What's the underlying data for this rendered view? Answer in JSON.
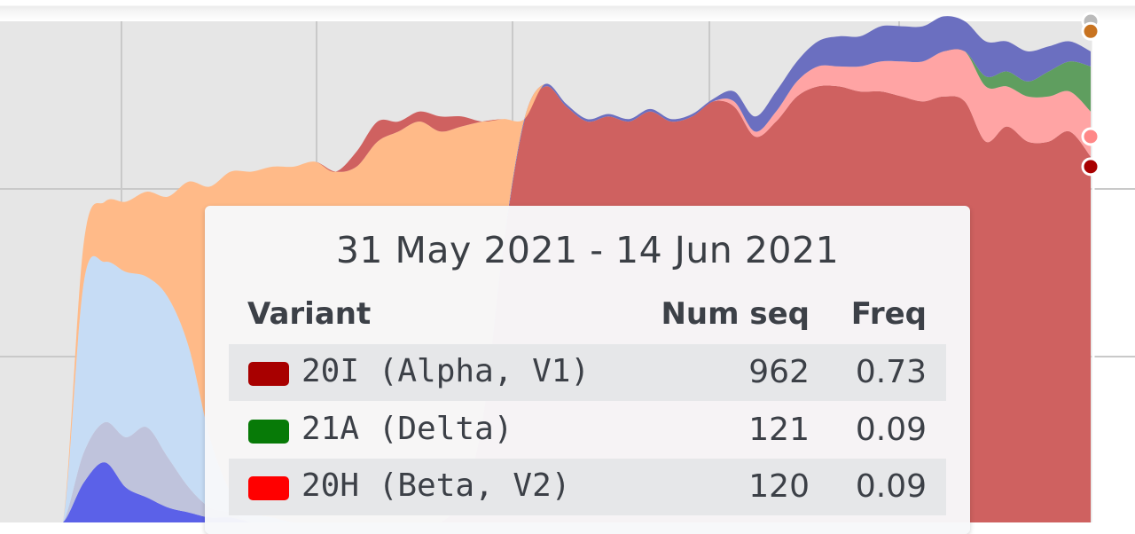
{
  "chart_data": {
    "type": "area",
    "stacked": true,
    "grid": true,
    "title": "",
    "xlabel": "",
    "ylabel": "",
    "ylim": [
      0,
      1
    ],
    "x": [
      0,
      1,
      2,
      3,
      4,
      5,
      6,
      7,
      8,
      9,
      10,
      11,
      12,
      13,
      14,
      15,
      16,
      17,
      18,
      19,
      20,
      21,
      22,
      23,
      24,
      25,
      26,
      27,
      28,
      29,
      30,
      31,
      32,
      33,
      34,
      35,
      36,
      37,
      38,
      39,
      40,
      41,
      42,
      43,
      44,
      45,
      46,
      47,
      48,
      49,
      50,
      51,
      52
    ],
    "series": [
      {
        "color": "#cf6160",
        "values": [
          0,
          0,
          0,
          0,
          0,
          0,
          0,
          0,
          0,
          0,
          0,
          0,
          0,
          0,
          0,
          0,
          0,
          0,
          0,
          0,
          0,
          0,
          0.05,
          0.2,
          0.55,
          0.8,
          0.87,
          0.83,
          0.8,
          0.81,
          0.8,
          0.82,
          0.8,
          0.81,
          0.84,
          0.83,
          0.77,
          0.8,
          0.85,
          0.87,
          0.87,
          0.86,
          0.86,
          0.85,
          0.84,
          0.85,
          0.84,
          0.76,
          0.79,
          0.76,
          0.76,
          0.78,
          0.73
        ]
      },
      {
        "color": "#5b61e8",
        "values": [
          0,
          0,
          0,
          0,
          0.08,
          0.12,
          0.07,
          0.05,
          0.03,
          0.02,
          0.01,
          0.01,
          0,
          0,
          0,
          0,
          0,
          0,
          0,
          0,
          0,
          0,
          0,
          0,
          0,
          0,
          0,
          0,
          0,
          0,
          0,
          0,
          0,
          0,
          0,
          0,
          0,
          0,
          0,
          0,
          0,
          0,
          0,
          0,
          0,
          0,
          0,
          0,
          0,
          0,
          0,
          0,
          0
        ]
      },
      {
        "color": "#bfc3dc",
        "values": [
          0,
          0,
          0,
          0,
          0.06,
          0.08,
          0.1,
          0.14,
          0.1,
          0.05,
          0.02,
          0.01,
          0,
          0,
          0,
          0,
          0,
          0,
          0,
          0,
          0,
          0,
          0,
          0,
          0,
          0,
          0,
          0,
          0,
          0,
          0,
          0,
          0,
          0,
          0,
          0,
          0,
          0,
          0,
          0,
          0,
          0,
          0,
          0,
          0,
          0,
          0,
          0,
          0,
          0,
          0,
          0,
          0
        ]
      },
      {
        "color": "#ffa4a4",
        "values": [
          0,
          0,
          0,
          0,
          0,
          0,
          0,
          0,
          0,
          0,
          0,
          0,
          0,
          0,
          0,
          0,
          0,
          0,
          0,
          0,
          0,
          0,
          0,
          0,
          0,
          0,
          0,
          0,
          0,
          0,
          0,
          0,
          0,
          0,
          0,
          0.01,
          0.01,
          0.02,
          0.03,
          0.04,
          0.04,
          0.05,
          0.06,
          0.07,
          0.08,
          0.09,
          0.1,
          0.11,
          0.08,
          0.09,
          0.09,
          0.08,
          0.09
        ]
      },
      {
        "color": "#5f9e5f",
        "values": [
          0,
          0,
          0,
          0,
          0,
          0,
          0,
          0,
          0,
          0,
          0,
          0,
          0,
          0,
          0,
          0,
          0,
          0,
          0,
          0,
          0,
          0,
          0,
          0,
          0,
          0,
          0,
          0,
          0,
          0,
          0,
          0,
          0,
          0,
          0,
          0,
          0,
          0,
          0,
          0,
          0,
          0,
          0,
          0,
          0,
          0,
          0,
          0.02,
          0.03,
          0.03,
          0.05,
          0.06,
          0.09
        ]
      },
      {
        "color": "#6b6fc0",
        "values": [
          0,
          0,
          0,
          0,
          0,
          0,
          0,
          0,
          0,
          0,
          0,
          0,
          0,
          0,
          0,
          0,
          0,
          0,
          0,
          0,
          0,
          0,
          0,
          0,
          0.005,
          0.005,
          0.005,
          0.005,
          0.005,
          0.005,
          0.005,
          0.005,
          0.005,
          0.005,
          0.005,
          0.02,
          0.03,
          0.04,
          0.04,
          0.05,
          0.06,
          0.06,
          0.07,
          0.07,
          0.07,
          0.07,
          0.06,
          0.07,
          0.06,
          0.06,
          0.05,
          0.04,
          0.03
        ]
      },
      {
        "color": "#c6dcf5",
        "values": [
          0,
          0,
          0,
          0,
          0.34,
          0.32,
          0.33,
          0.3,
          0.32,
          0.28,
          0.14,
          0.04,
          0.02,
          0.01,
          0,
          0,
          0,
          0,
          0,
          0,
          0,
          0,
          0,
          0,
          0,
          0,
          0,
          0,
          0,
          0,
          0,
          0,
          0,
          0,
          0,
          0,
          0,
          0,
          0,
          0,
          0,
          0,
          0,
          0,
          0,
          0,
          0,
          0,
          0,
          0,
          0,
          0,
          0
        ]
      },
      {
        "color": "#ffba88",
        "values": [
          0,
          0,
          0,
          0,
          0.08,
          0.12,
          0.14,
          0.17,
          0.2,
          0.33,
          0.5,
          0.64,
          0.68,
          0.7,
          0.71,
          0.72,
          0.7,
          0.71,
          0.76,
          0.78,
          0.8,
          0.78,
          0.74,
          0.6,
          0.25,
          0,
          0,
          0,
          0,
          0,
          0,
          0,
          0,
          0,
          0,
          0,
          0,
          0,
          0,
          0,
          0,
          0,
          0,
          0,
          0,
          0,
          0,
          0,
          0,
          0,
          0,
          0,
          0
        ]
      },
      {
        "color": "#cf6160",
        "values": [
          0,
          0,
          0,
          0,
          0,
          0,
          0,
          0,
          0,
          0,
          0,
          0,
          0,
          0,
          0,
          0,
          0,
          0.03,
          0.04,
          0.02,
          0.02,
          0.03,
          0.02,
          0,
          0,
          0,
          0,
          0,
          0,
          0,
          0,
          0,
          0,
          0,
          0,
          0,
          0,
          0,
          0,
          0,
          0,
          0,
          0,
          0,
          0,
          0,
          0,
          0,
          0,
          0,
          0,
          0,
          0
        ]
      }
    ],
    "end_markers": [
      {
        "color": "#bbbbbb",
        "value": 1.0
      },
      {
        "color": "#c87320",
        "value": 0.98
      },
      {
        "color": "#ff8888",
        "value": 0.77
      },
      {
        "color": "#a80000",
        "value": 0.71
      }
    ],
    "tooltip": {
      "title": "31 May 2021 - 14 Jun 2021",
      "headers": {
        "variant": "Variant",
        "num_seq": "Num seq",
        "freq": "Freq"
      },
      "rows": [
        {
          "swatch": "#a80000",
          "variant": "20I (Alpha, V1)",
          "num_seq": "962",
          "freq": "0.73"
        },
        {
          "swatch": "#077a07",
          "variant": "21A (Delta)",
          "num_seq": "121",
          "freq": "0.09"
        },
        {
          "swatch": "#ff0000",
          "variant": "20H (Beta, V2)",
          "num_seq": "120",
          "freq": "0.09"
        }
      ]
    }
  }
}
